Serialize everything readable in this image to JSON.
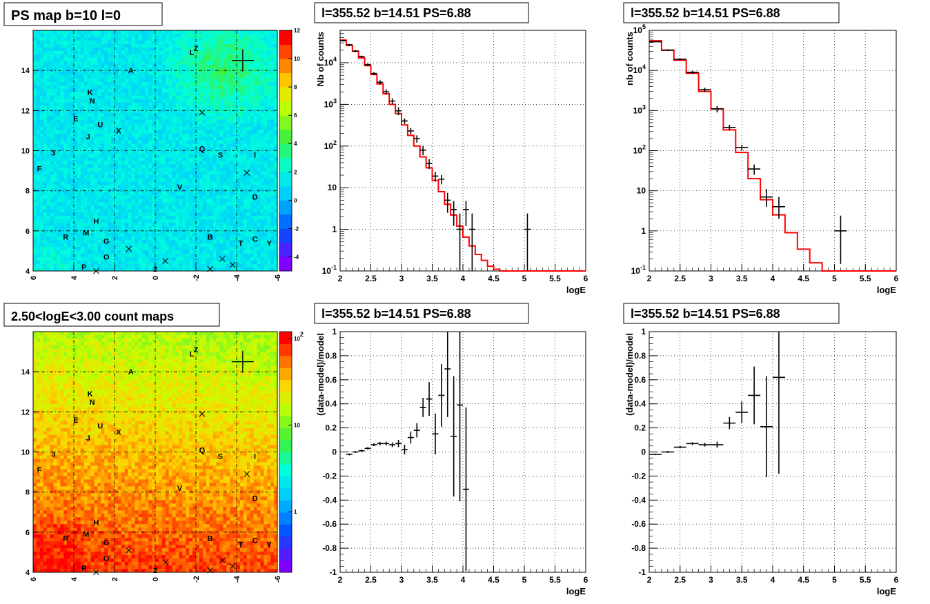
{
  "chart_data": [
    {
      "id": "ps-map",
      "type": "heatmap",
      "title": "PS map b=10 l=0",
      "xlabel": "",
      "ylabel": "",
      "xlim": [
        6,
        -6
      ],
      "ylim": [
        4,
        16
      ],
      "x_ticks": [
        "6",
        "4",
        "2",
        "0",
        "-2",
        "-4",
        "-6"
      ],
      "y_ticks": [
        "4",
        "6",
        "8",
        "10",
        "12",
        "14"
      ],
      "colorbar": {
        "scale": "linear",
        "range": [
          -5,
          12
        ],
        "ticks": [
          "-4",
          "-2",
          "0",
          "2",
          "4",
          "6",
          "8",
          "10",
          "12"
        ]
      },
      "grid": true,
      "markers_plus": [
        [
          -4.3,
          14.5
        ]
      ],
      "markers_x": [
        [
          -2.3,
          11.9
        ],
        [
          -4.5,
          8.9
        ],
        [
          2.9,
          4.0
        ],
        [
          1.3,
          5.1
        ],
        [
          -0.5,
          4.5
        ],
        [
          -2.7,
          4.1
        ],
        [
          -3.3,
          4.6
        ],
        [
          -3.8,
          4.3
        ]
      ],
      "labels": [
        {
          "t": "Z",
          "x": -2.0,
          "y": 15.1
        },
        {
          "t": "L",
          "x": -1.8,
          "y": 14.9
        },
        {
          "t": "A",
          "x": 1.2,
          "y": 14.0
        },
        {
          "t": "K",
          "x": 3.2,
          "y": 12.9
        },
        {
          "t": "N",
          "x": 3.1,
          "y": 12.5
        },
        {
          "t": "E",
          "x": 3.9,
          "y": 11.6
        },
        {
          "t": "U",
          "x": 2.7,
          "y": 11.3
        },
        {
          "t": "X",
          "x": 1.8,
          "y": 11.0
        },
        {
          "t": "J",
          "x": 3.3,
          "y": 10.7
        },
        {
          "t": "3",
          "x": 5.0,
          "y": 9.9
        },
        {
          "t": "Q",
          "x": -2.3,
          "y": 10.1
        },
        {
          "t": "S",
          "x": -3.2,
          "y": 9.8
        },
        {
          "t": "I",
          "x": -4.9,
          "y": 9.8
        },
        {
          "t": "F",
          "x": 5.7,
          "y": 9.1
        },
        {
          "t": "V",
          "x": -1.2,
          "y": 8.2
        },
        {
          "t": "D",
          "x": -4.9,
          "y": 7.7
        },
        {
          "t": "H",
          "x": 2.9,
          "y": 6.5
        },
        {
          "t": "R",
          "x": 4.4,
          "y": 5.7
        },
        {
          "t": "M",
          "x": 3.4,
          "y": 5.9
        },
        {
          "t": "G",
          "x": 2.4,
          "y": 5.5
        },
        {
          "t": "B",
          "x": -2.7,
          "y": 5.7
        },
        {
          "t": "C",
          "x": -4.9,
          "y": 5.6
        },
        {
          "t": "T",
          "x": -4.2,
          "y": 5.4
        },
        {
          "t": "Y",
          "x": -5.6,
          "y": 5.4
        },
        {
          "t": "O",
          "x": 2.4,
          "y": 4.7
        },
        {
          "t": "P",
          "x": 3.5,
          "y": 4.2
        },
        {
          "t": "2",
          "x": 0.0,
          "y": 4.1
        }
      ]
    },
    {
      "id": "spectrum-1",
      "type": "line",
      "title": "l=355.52 b=14.51 PS=6.88",
      "xlabel": "logE",
      "ylabel": "Nb of counts",
      "xlim": [
        2,
        6
      ],
      "ylim": [
        0.1,
        60000
      ],
      "yscale": "log",
      "x_ticks": [
        "2",
        "2.5",
        "3",
        "3.5",
        "4",
        "4.5",
        "5",
        "5.5",
        "6"
      ],
      "y_ticks": [
        "10^-1",
        "1",
        "10",
        "10^2",
        "10^3",
        "10^4"
      ],
      "grid": true,
      "model": {
        "edges": [
          2.0,
          2.1,
          2.2,
          2.3,
          2.4,
          2.5,
          2.6,
          2.7,
          2.8,
          2.9,
          3.0,
          3.1,
          3.2,
          3.3,
          3.4,
          3.5,
          3.6,
          3.7,
          3.8,
          3.9,
          4.0,
          4.1,
          4.2,
          4.3,
          4.4,
          4.5,
          4.6,
          6.0
        ],
        "values": [
          35000,
          26000,
          19000,
          13000,
          8500,
          5200,
          3100,
          1800,
          1000,
          600,
          320,
          180,
          100,
          55,
          30,
          15,
          8,
          4,
          2.2,
          1.2,
          0.65,
          0.4,
          0.25,
          0.18,
          0.13,
          0.11,
          0.1
        ]
      },
      "data": {
        "x": [
          2.05,
          2.15,
          2.25,
          2.35,
          2.45,
          2.55,
          2.65,
          2.75,
          2.85,
          2.95,
          3.05,
          3.15,
          3.25,
          3.35,
          3.45,
          3.55,
          3.65,
          3.75,
          3.85,
          3.95,
          4.05,
          4.15,
          5.05
        ],
        "y": [
          34000,
          27000,
          19000,
          14000,
          9000,
          5500,
          3400,
          2000,
          1200,
          700,
          400,
          230,
          150,
          80,
          38,
          19,
          16,
          5,
          3,
          1,
          3,
          1,
          1
        ],
        "err_lo": [
          1500,
          1300,
          1100,
          900,
          700,
          500,
          400,
          300,
          200,
          150,
          60,
          40,
          30,
          20,
          10,
          5,
          4,
          2.5,
          1.8,
          0.9,
          1.8,
          0.9,
          0.9
        ],
        "err_hi": [
          1500,
          1300,
          1100,
          900,
          700,
          500,
          400,
          300,
          200,
          150,
          60,
          40,
          30,
          20,
          10,
          5,
          4,
          2.5,
          1.8,
          1.4,
          1.8,
          1.4,
          1.4
        ]
      }
    },
    {
      "id": "spectrum-2",
      "type": "line",
      "title": "l=355.52 b=14.51 PS=6.88",
      "xlabel": "logE",
      "ylabel": "nb of counts",
      "xlim": [
        2,
        6
      ],
      "ylim": [
        0.1,
        100000
      ],
      "yscale": "log",
      "x_ticks": [
        "2",
        "2.5",
        "3",
        "3.5",
        "4",
        "4.5",
        "5",
        "5.5",
        "6"
      ],
      "y_ticks": [
        "10^-1",
        "1",
        "10",
        "10^2",
        "10^3",
        "10^4",
        "10^5"
      ],
      "grid": true,
      "model": {
        "edges": [
          2.0,
          2.2,
          2.4,
          2.6,
          2.8,
          3.0,
          3.2,
          3.4,
          3.6,
          3.8,
          4.0,
          4.2,
          4.4,
          4.6,
          4.8,
          6.0
        ],
        "values": [
          55000,
          32000,
          18000,
          8500,
          3000,
          1100,
          330,
          90,
          20,
          6,
          2.5,
          0.9,
          0.35,
          0.16,
          0.1
        ]
      },
      "data": {
        "x": [
          2.1,
          2.3,
          2.5,
          2.7,
          2.9,
          3.1,
          3.3,
          3.5,
          3.7,
          3.9,
          4.1,
          5.1
        ],
        "y": [
          52000,
          32000,
          19000,
          9000,
          3300,
          1100,
          380,
          120,
          35,
          7,
          4,
          1
        ],
        "err_lo": [
          2000,
          1500,
          1100,
          800,
          400,
          200,
          60,
          20,
          10,
          3,
          2,
          0.85
        ],
        "err_hi": [
          2000,
          1500,
          1100,
          800,
          400,
          200,
          60,
          20,
          10,
          4,
          3,
          1.4
        ]
      }
    },
    {
      "id": "count-map",
      "type": "heatmap",
      "title": "2.50<logE<3.00 count maps",
      "xlabel": "",
      "ylabel": "",
      "xlim": [
        6,
        -6
      ],
      "ylim": [
        4,
        16
      ],
      "x_ticks": [
        "6",
        "4",
        "2",
        "0",
        "-2",
        "-4",
        "-6"
      ],
      "y_ticks": [
        "4",
        "6",
        "8",
        "10",
        "12",
        "14"
      ],
      "colorbar": {
        "scale": "log",
        "range": [
          0.2,
          120
        ],
        "ticks": [
          "1",
          "10",
          "10^2"
        ]
      },
      "grid": true,
      "same_markers_as": "ps-map"
    },
    {
      "id": "residual-1",
      "type": "scatter",
      "title": "l=355.52 b=14.51 PS=6.88",
      "xlabel": "logE",
      "ylabel": "(data-model)/model",
      "xlim": [
        2,
        6
      ],
      "ylim": [
        -1,
        1
      ],
      "x_ticks": [
        "2",
        "2.5",
        "3",
        "3.5",
        "4",
        "4.5",
        "5",
        "5.5",
        "6"
      ],
      "y_ticks": [
        "-1",
        "-0.8",
        "-0.6",
        "-0.4",
        "-0.2",
        "0",
        "0.2",
        "0.4",
        "0.6",
        "0.8",
        "1"
      ],
      "grid": true,
      "data": {
        "x": [
          2.15,
          2.25,
          2.35,
          2.45,
          2.55,
          2.65,
          2.75,
          2.85,
          2.95,
          3.05,
          3.15,
          3.25,
          3.35,
          3.45,
          3.55,
          3.65,
          3.75,
          3.85,
          3.95,
          4.05
        ],
        "y": [
          -0.02,
          0.0,
          0.01,
          0.03,
          0.06,
          0.07,
          0.07,
          0.06,
          0.07,
          0.02,
          0.12,
          0.18,
          0.37,
          0.44,
          0.15,
          0.47,
          0.69,
          0.13,
          0.39,
          -0.31
        ],
        "err": [
          0.008,
          0.008,
          0.01,
          0.01,
          0.012,
          0.014,
          0.016,
          0.02,
          0.03,
          0.04,
          0.05,
          0.06,
          0.08,
          0.14,
          0.17,
          0.26,
          0.4,
          0.5,
          0.8,
          0.68
        ]
      }
    },
    {
      "id": "residual-2",
      "type": "scatter",
      "title": "l=355.52 b=14.51 PS=6.88",
      "xlabel": "logE",
      "ylabel": "(data-model)/model",
      "xlim": [
        2,
        6
      ],
      "ylim": [
        -1,
        1
      ],
      "x_ticks": [
        "2",
        "2.5",
        "3",
        "3.5",
        "4",
        "4.5",
        "5",
        "5.5",
        "6"
      ],
      "y_ticks": [
        "-1",
        "-0.8",
        "-0.6",
        "-0.4",
        "-0.2",
        "0",
        "0.2",
        "0.4",
        "0.6",
        "0.8",
        "1"
      ],
      "grid": true,
      "data": {
        "x": [
          2.1,
          2.3,
          2.5,
          2.7,
          2.9,
          3.1,
          3.3,
          3.5,
          3.7,
          3.9,
          4.1
        ],
        "y": [
          -0.02,
          0.0,
          0.04,
          0.07,
          0.06,
          0.06,
          0.24,
          0.33,
          0.47,
          0.21,
          0.62
        ],
        "err": [
          0.006,
          0.008,
          0.01,
          0.012,
          0.015,
          0.025,
          0.05,
          0.09,
          0.24,
          0.42,
          0.8
        ]
      }
    }
  ]
}
